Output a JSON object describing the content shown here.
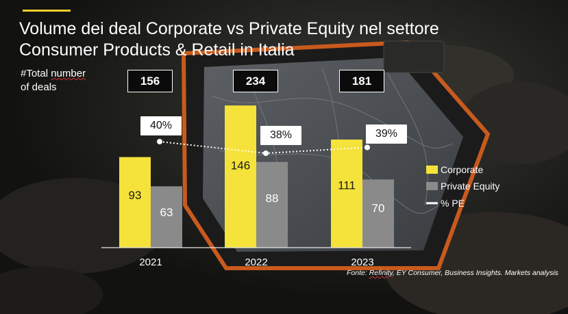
{
  "header": {
    "title_line1": "Volume dei deal Corporate vs Private Equity nel settore",
    "title_line2": "Consumer Products & Retail in Italia",
    "total_label_line1_prefix": "#Total ",
    "total_label_line1_word": "number",
    "total_label_line2": "of deals"
  },
  "colors": {
    "corporate": "#f5e23a",
    "private_equity": "#8a8a8a",
    "pe_line": "#ffffff",
    "accent": "#f2d02c"
  },
  "chart_data": {
    "type": "bar",
    "title": "Volume dei deal Corporate vs Private Equity nel settore Consumer Products & Retail in Italia",
    "categories": [
      "2021",
      "2022",
      "2023"
    ],
    "series": [
      {
        "name": "Corporate",
        "values": [
          93,
          146,
          111
        ]
      },
      {
        "name": "Private Equity",
        "values": [
          63,
          88,
          70
        ]
      }
    ],
    "line_series": {
      "name": "% PE",
      "values": [
        40,
        38,
        39
      ],
      "labels": [
        "40%",
        "38%",
        "39%"
      ]
    },
    "totals": [
      156,
      234,
      181
    ],
    "ylim": [
      0,
      170
    ],
    "xlabel": "",
    "ylabel": "",
    "legend": [
      "Corporate",
      "Private Equity",
      "% PE"
    ],
    "legend_position": "right"
  },
  "source": {
    "prefix": "Fonte: ",
    "refinity": "Refinity",
    "rest": ", EY Consumer, Business Insights. Markets analysis"
  }
}
